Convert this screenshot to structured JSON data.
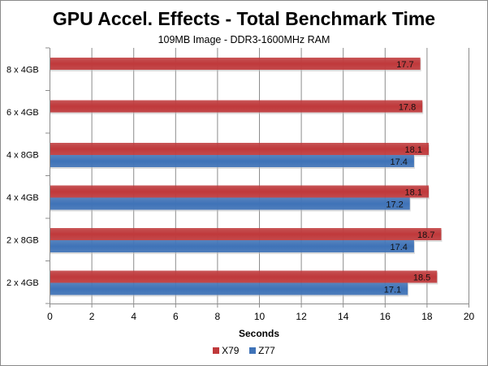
{
  "chart_data": {
    "type": "bar",
    "orientation": "horizontal",
    "title": "GPU Accel. Effects - Total Benchmark Time",
    "subtitle": "109MB Image - DDR3-1600MHz RAM",
    "xlabel": "Seconds",
    "ylabel": "",
    "xlim": [
      0,
      20
    ],
    "xticks": [
      "0",
      "2",
      "4",
      "6",
      "8",
      "10",
      "12",
      "14",
      "16",
      "18",
      "20"
    ],
    "grid": true,
    "legend_position": "bottom",
    "categories": [
      "8 x 4GB",
      "6 x 4GB",
      "4 x 8GB",
      "4 x 4GB",
      "2 x 8GB",
      "2 x 4GB"
    ],
    "series": [
      {
        "name": "X79",
        "color": "#c0393b",
        "values": [
          17.7,
          17.8,
          18.1,
          18.1,
          18.7,
          18.5
        ],
        "labels": [
          "17.7",
          "17.8",
          "18.1",
          "18.1",
          "18.7",
          "18.5"
        ]
      },
      {
        "name": "Z77",
        "color": "#3f73b8",
        "values": [
          null,
          null,
          17.4,
          17.2,
          17.4,
          17.1
        ],
        "labels": [
          null,
          null,
          "17.4",
          "17.2",
          "17.4",
          "17.1"
        ]
      }
    ]
  }
}
